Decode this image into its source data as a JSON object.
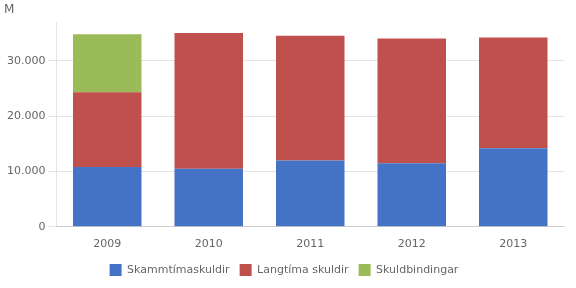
{
  "chart_data": {
    "type": "bar",
    "stacked": true,
    "categories": [
      "2009",
      "2010",
      "2011",
      "2012",
      "2013"
    ],
    "series": [
      {
        "name": "Skammtímaskuldir",
        "color": "#4472C4",
        "values": [
          10800,
          10500,
          12000,
          11500,
          14200
        ]
      },
      {
        "name": "Langtíma skuldir",
        "color": "#C0504D",
        "values": [
          13500,
          24500,
          22500,
          22500,
          20000
        ]
      },
      {
        "name": "Skuldbindingar",
        "color": "#9BBB59",
        "values": [
          10500,
          0,
          0,
          0,
          0
        ]
      }
    ],
    "ylim": [
      0,
      37000
    ],
    "yticks": [
      0,
      {
        "value": 10000,
        "label": "10.000"
      },
      {
        "value": 20000,
        "label": "20.000"
      },
      {
        "value": 30000,
        "label": "30.000"
      }
    ],
    "grid": true,
    "legend": "bottom",
    "annotations": [
      "M"
    ]
  }
}
